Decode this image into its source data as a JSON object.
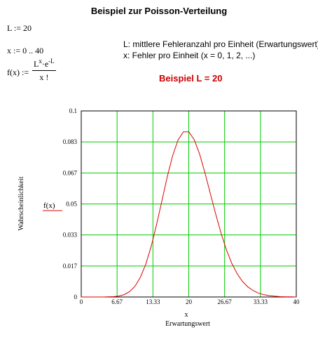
{
  "title": "Beispiel zur Poisson-Verteilung",
  "definitions": {
    "L_def": "L := 20",
    "x_def": "x := 0 .. 40",
    "f_lhs": "f(x) :=",
    "f_num_L": "L",
    "f_num_x": "x",
    "f_num_dot": "·e",
    "f_num_minusL": "-L",
    "f_den": "x !"
  },
  "descriptions": {
    "line1": "L: mittlere Fehleranzahl pro Einheit (Erwartungswert)",
    "line2": "x: Fehler pro Einheit (x = 0, 1, 2, ...)"
  },
  "example_label": "Beispiel L = 20",
  "colors": {
    "curve": "#dd0000",
    "grid": "#00cc00",
    "example": "#cc0000"
  },
  "chart_data": {
    "type": "line",
    "title": "",
    "xlabel": "x",
    "xlabel2": "Erwartungswert",
    "ylabel": "Wahrscheinlichkeit",
    "legend": "f(x)",
    "xlim": [
      0,
      40
    ],
    "ylim": [
      0,
      0.1
    ],
    "xticks": [
      "0",
      "6.67",
      "13.33",
      "20",
      "26.67",
      "33.33",
      "40"
    ],
    "yticks": [
      "0",
      "0.017",
      "0.033",
      "0.05",
      "0.067",
      "0.083",
      "0.1"
    ],
    "grid": true,
    "series": [
      {
        "name": "f(x)",
        "x": [
          0,
          1,
          2,
          3,
          4,
          5,
          6,
          7,
          8,
          9,
          10,
          11,
          12,
          13,
          14,
          15,
          16,
          17,
          18,
          19,
          20,
          21,
          22,
          23,
          24,
          25,
          26,
          27,
          28,
          29,
          30,
          31,
          32,
          33,
          34,
          35,
          36,
          37,
          38,
          39,
          40
        ],
        "y": [
          0,
          0,
          0,
          0,
          0,
          0.0001,
          0.0002,
          0.0005,
          0.0013,
          0.0029,
          0.0058,
          0.0106,
          0.0176,
          0.0271,
          0.0387,
          0.0516,
          0.0646,
          0.076,
          0.0844,
          0.0888,
          0.0888,
          0.0846,
          0.0769,
          0.0669,
          0.0557,
          0.0446,
          0.0343,
          0.0254,
          0.0181,
          0.0125,
          0.0083,
          0.0054,
          0.0034,
          0.002,
          0.0012,
          0.0007,
          0.0004,
          0.0002,
          0.0001,
          0.0001,
          0
        ]
      }
    ]
  }
}
